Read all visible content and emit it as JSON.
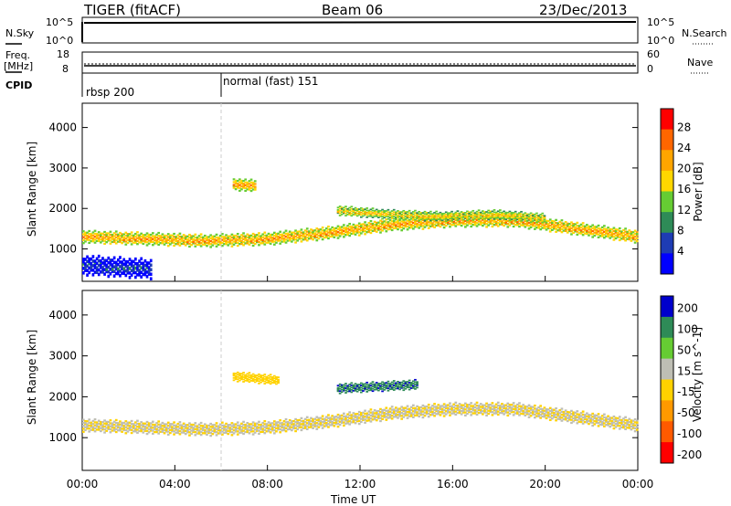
{
  "header": {
    "title": "TIGER (fitACF)",
    "beam": "Beam 06",
    "date": "23/Dec/2013"
  },
  "nsky": {
    "label": "N.Sky",
    "ticks": [
      "10^5",
      "10^0"
    ]
  },
  "nsearch": {
    "label": "N.Search",
    "ticks": [
      "10^5",
      "10^0"
    ]
  },
  "freq": {
    "label_top": "Freq.",
    "label_unit": "[MHz]",
    "ticks": [
      "18",
      "8"
    ]
  },
  "nave": {
    "label": "Nave",
    "ticks": [
      "60",
      "0"
    ]
  },
  "cpid": {
    "label": "CPID",
    "modes": [
      "rbsp 200",
      "normal (fast) 151"
    ],
    "mode_start_hours": [
      0,
      6
    ]
  },
  "colors": {
    "power": [
      "#0000ff",
      "#1e3cb4",
      "#2e8b57",
      "#66cc33",
      "#ffd700",
      "#ffa500",
      "#ff6600",
      "#ff0000"
    ],
    "velocity": [
      "#0000cc",
      "#2e8b57",
      "#66cc33",
      "#bebeb4",
      "#ffd200",
      "#ff9900",
      "#ff5a00",
      "#ff0000"
    ]
  },
  "chart_data": [
    {
      "type": "heatmap",
      "parameter": "power",
      "ylabel": "Slant Range [km]",
      "xlim_hours": [
        0,
        24
      ],
      "ylim": [
        200,
        4600
      ],
      "yticks": [
        1000,
        2000,
        3000,
        4000
      ],
      "colorbar": {
        "label": "Power [dB]",
        "ticks": [
          "28",
          "24",
          "20",
          "16",
          "12",
          "8",
          "4"
        ],
        "range": [
          0,
          30
        ]
      },
      "bands": [
        {
          "t_start": 0,
          "t_end": 24,
          "center_km": [
            1300,
            1250,
            1200,
            1250,
            1400,
            1600,
            1700,
            1700,
            1500,
            1300
          ],
          "width_km": 260,
          "value_db": 22
        },
        {
          "t_start": 11,
          "t_end": 20,
          "center_km": [
            1950,
            1850,
            1800,
            1850,
            1750
          ],
          "width_km": 200,
          "value_db": 20
        },
        {
          "t_start": 0,
          "t_end": 3,
          "center_km": [
            600,
            500
          ],
          "width_km": 400,
          "value_db": 6
        },
        {
          "t_start": 6.5,
          "t_end": 7.5,
          "center_km": [
            2600,
            2550
          ],
          "width_km": 250,
          "value_db": 22
        }
      ]
    },
    {
      "type": "heatmap",
      "parameter": "velocity",
      "ylabel": "Slant Range [km]",
      "xlabel": "Time UT",
      "xlim_hours": [
        0,
        24
      ],
      "xticks": [
        "00:00",
        "04:00",
        "08:00",
        "12:00",
        "16:00",
        "20:00",
        "00:00"
      ],
      "ylim": [
        200,
        4600
      ],
      "yticks": [
        1000,
        2000,
        3000,
        4000
      ],
      "colorbar": {
        "label": "Velocity [m s^-1]",
        "ticks": [
          "200",
          "100",
          "50",
          "15",
          "-15",
          "-50",
          "-100",
          "-200"
        ],
        "range": [
          -250,
          250
        ]
      },
      "bands": [
        {
          "t_start": 0,
          "t_end": 24,
          "center_km": [
            1300,
            1250,
            1200,
            1250,
            1400,
            1600,
            1700,
            1700,
            1500,
            1300
          ],
          "width_km": 260,
          "value_ms": 0
        },
        {
          "t_start": 11,
          "t_end": 14.5,
          "center_km": [
            2200,
            2300
          ],
          "width_km": 200,
          "value_ms": 180
        },
        {
          "t_start": 6.5,
          "t_end": 8.5,
          "center_km": [
            2500,
            2400
          ],
          "width_km": 200,
          "value_ms": -40
        }
      ]
    }
  ]
}
